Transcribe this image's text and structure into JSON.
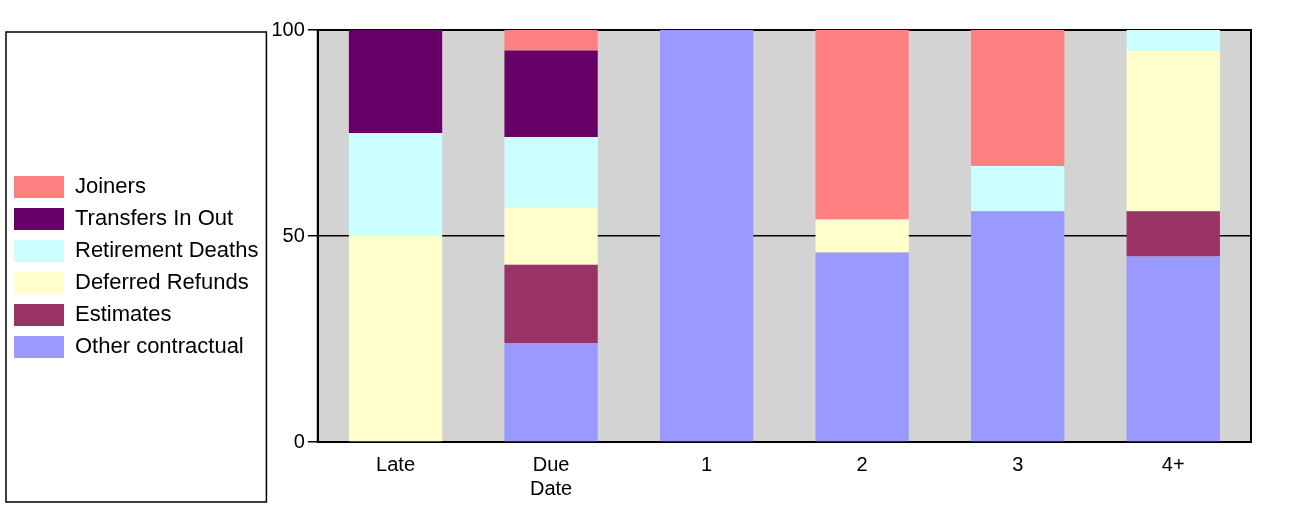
{
  "chart_data": {
    "type": "bar",
    "stacked": true,
    "categories": [
      "Late",
      "Due Date",
      "1",
      "2",
      "3",
      "4+"
    ],
    "series": [
      {
        "name": "Other contractual",
        "color": "#9999ff",
        "values": [
          0,
          24,
          100,
          46,
          56,
          45
        ]
      },
      {
        "name": "Estimates",
        "color": "#993366",
        "values": [
          0,
          19,
          0,
          0,
          0,
          11
        ]
      },
      {
        "name": "Deferred Refunds",
        "color": "#ffffcc",
        "values": [
          50,
          14,
          0,
          8,
          0,
          39
        ]
      },
      {
        "name": "Retirement Deaths",
        "color": "#ccffff",
        "values": [
          25,
          17,
          0,
          0,
          11,
          5
        ]
      },
      {
        "name": "Transfers In Out",
        "color": "#660066",
        "values": [
          25,
          21,
          0,
          0,
          0,
          0
        ]
      },
      {
        "name": "Joiners",
        "color": "#ff8080",
        "values": [
          0,
          5,
          0,
          46,
          33,
          0
        ]
      }
    ],
    "ylim": [
      0,
      100
    ],
    "yticks": [
      0,
      50,
      100
    ],
    "grid": "y",
    "legend": "left"
  }
}
